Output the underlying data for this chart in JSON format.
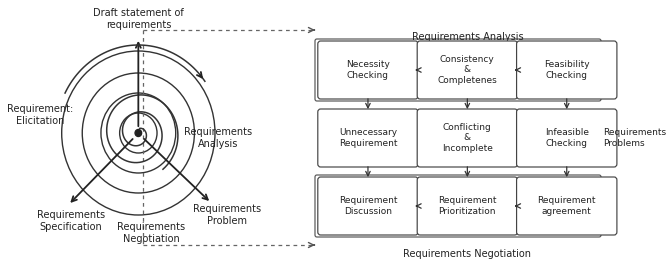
{
  "left_labels": {
    "draft": "Draft statement of\nrequirements",
    "elicitation": "Requirement:\nElicitation",
    "specification": "Requirements\nSpecification",
    "negotiation_label": "Requirements\nNegotiation",
    "problem_label": "Requirements\nProblem",
    "analysis_label": "Requirements\nAnalysis"
  },
  "right_section": {
    "title_analysis": "Requirements Analysis",
    "title_negotiation": "Requirements Negotiation",
    "row1": [
      "Necessity\nChecking",
      "Consistency\n&\nCompletenes",
      "Feasibility\nChecking"
    ],
    "row2": [
      "Unnecessary\nRequirement",
      "Conflicting\n&\nIncomplete",
      "Infeasible\nChecking"
    ],
    "row3": [
      "Requirement\nDiscussion",
      "Requirement\nPrioritization",
      "Requirement\nagreement"
    ],
    "side_label": "Requirements\nProblems"
  }
}
